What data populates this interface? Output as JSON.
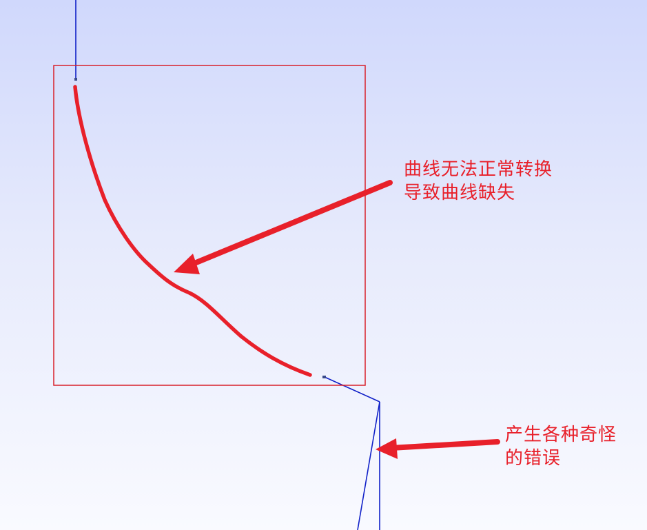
{
  "annotations": {
    "missing_curve": {
      "line1": "曲线无法正常转换",
      "line2": "导致曲线缺失"
    },
    "strange_errors": {
      "line1": "产生各种奇怪",
      "line2": "的错误"
    }
  },
  "colors": {
    "background_top": "#d0d8fc",
    "background_bottom": "#f9faff",
    "geometry_line": "#1020c8",
    "annotation": "#e8202a"
  },
  "icons": [
    "arrow-icon"
  ]
}
